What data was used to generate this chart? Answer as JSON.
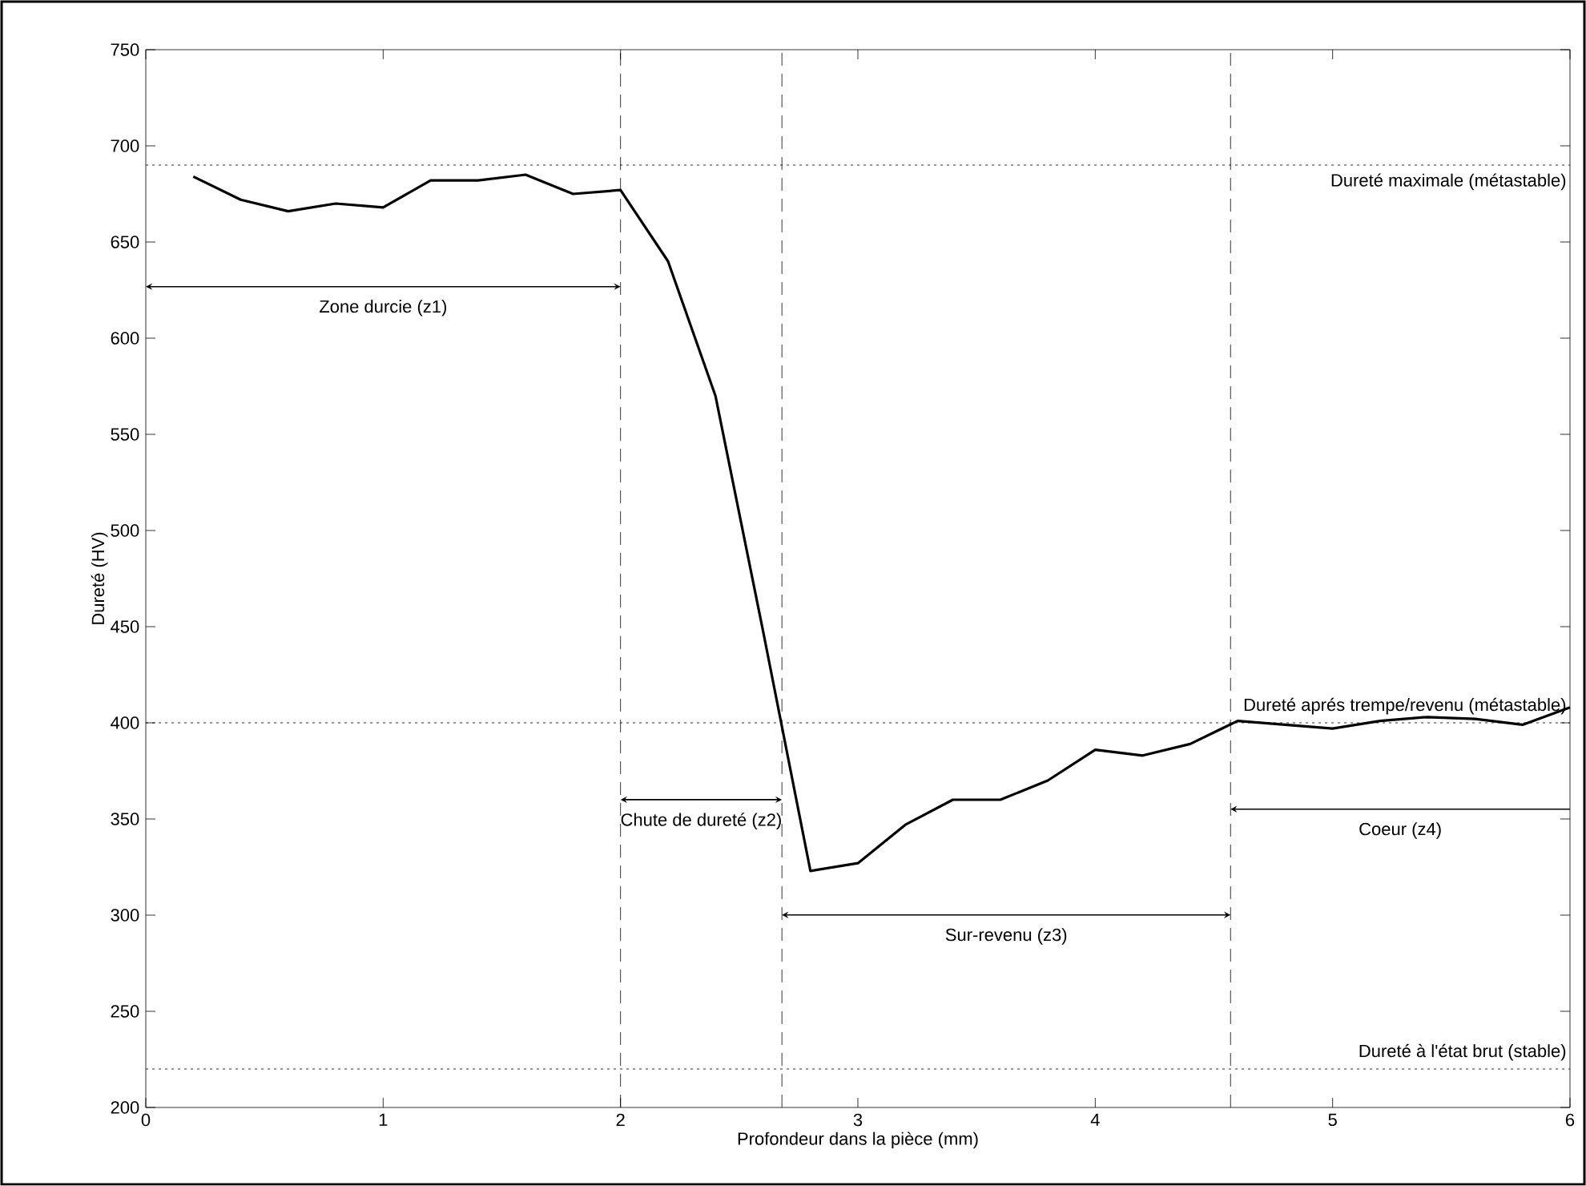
{
  "chart_data": {
    "type": "line",
    "xlabel": "Profondeur dans la pièce (mm)",
    "ylabel": "Dureté (HV)",
    "x": [
      0.2,
      0.4,
      0.6,
      0.8,
      1.0,
      1.2,
      1.4,
      1.6,
      1.8,
      2.0,
      2.2,
      2.4,
      2.6,
      2.8,
      3.0,
      3.2,
      3.4,
      3.6,
      3.8,
      4.0,
      4.2,
      4.4,
      4.6,
      4.8,
      5.0,
      5.2,
      5.4,
      5.6,
      5.8,
      6.0
    ],
    "series": [
      {
        "color": "#000000",
        "values": [
          684,
          672,
          666,
          670,
          668,
          682,
          682,
          685,
          675,
          677,
          640,
          570,
          448,
          323,
          327,
          347,
          360,
          360,
          370,
          386,
          383,
          389,
          401,
          399,
          397,
          401,
          403,
          402,
          399,
          408
        ]
      }
    ],
    "xlim": [
      0,
      6
    ],
    "ylim": [
      200,
      750
    ],
    "xticks": [
      0,
      1,
      2,
      3,
      4,
      5,
      6
    ],
    "yticks": [
      200,
      250,
      300,
      350,
      400,
      450,
      500,
      550,
      600,
      650,
      700,
      750
    ],
    "grid": false,
    "marker": "none",
    "line_style": "solid",
    "ref_lines": [
      {
        "axis": "y",
        "value": 690,
        "label": "Dureté maximale (métastable)",
        "line_style": "dotted"
      },
      {
        "axis": "y",
        "value": 400,
        "label": "Dureté aprés trempe/revenu (métastable)",
        "line_style": "dotted"
      },
      {
        "axis": "y",
        "value": 220,
        "label": "Dureté à l'état brut (stable)",
        "line_style": "dotted"
      },
      {
        "axis": "x",
        "value": 2.0,
        "line_style": "dashed"
      },
      {
        "axis": "x",
        "value": 2.68,
        "line_style": "dashed"
      },
      {
        "axis": "x",
        "value": 4.57,
        "line_style": "dashed"
      }
    ],
    "annotations": [
      "Zone durcie (z1)",
      "Chute de dureté (z2)",
      "Sur-revenu (z3)",
      "Coeur (z4)"
    ]
  }
}
